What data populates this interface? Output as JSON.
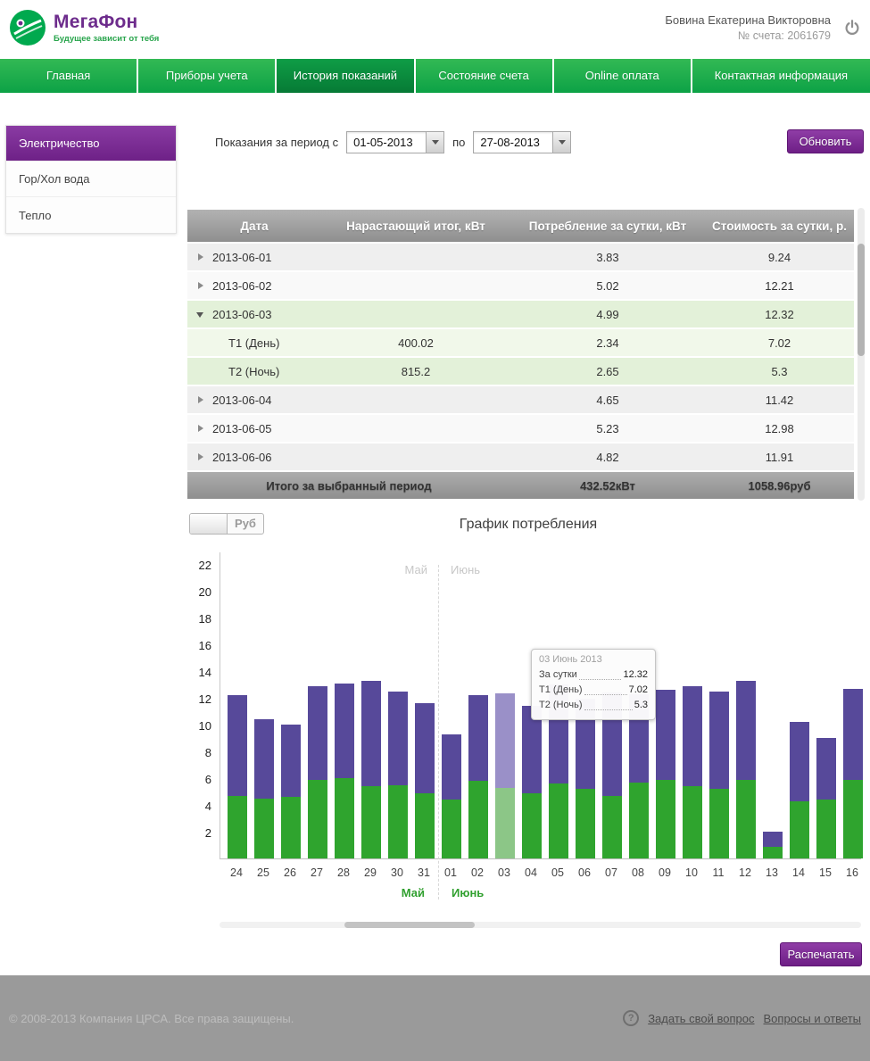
{
  "header": {
    "brand": "МегаФон",
    "tagline": "Будущее зависит от тебя",
    "user_name": "Бовина Екатерина Викторовна",
    "account": "№ счета: 2061679"
  },
  "nav": {
    "items": [
      {
        "label": "Главная",
        "active": false
      },
      {
        "label": "Приборы учета",
        "active": false
      },
      {
        "label": "История показаний",
        "active": true
      },
      {
        "label": "Состояние счета",
        "active": false
      },
      {
        "label": "Online оплата",
        "active": false
      },
      {
        "label": "Контактная информация",
        "active": false
      }
    ]
  },
  "sidebar": {
    "items": [
      {
        "label": "Электричество",
        "active": true
      },
      {
        "label": "Гор/Хол вода",
        "active": false
      },
      {
        "label": "Тепло",
        "active": false
      }
    ]
  },
  "filter": {
    "label_prefix": "Показания за период с",
    "date_from": "01-05-2013",
    "label_between": "по",
    "date_to": "27-08-2013",
    "refresh_label": "Обновить"
  },
  "table": {
    "columns": [
      "Дата",
      "Нарастающий итог, кВт",
      "Потребление за сутки, кВт",
      "Стоимость за сутки, р."
    ],
    "rows": [
      {
        "date": "2013-06-01",
        "total": "",
        "consumption": "3.83",
        "cost": "9.24"
      },
      {
        "date": "2013-06-02",
        "total": "",
        "consumption": "5.02",
        "cost": "12.21"
      },
      {
        "date": "2013-06-03",
        "total": "",
        "consumption": "4.99",
        "cost": "12.32"
      },
      {
        "date": "Т1 (День)",
        "total": "400.02",
        "consumption": "2.34",
        "cost": "7.02"
      },
      {
        "date": "Т2 (Ночь)",
        "total": "815.2",
        "consumption": "2.65",
        "cost": "5.3"
      },
      {
        "date": "2013-06-04",
        "total": "",
        "consumption": "4.65",
        "cost": "11.42"
      },
      {
        "date": "2013-06-05",
        "total": "",
        "consumption": "5.23",
        "cost": "12.98"
      },
      {
        "date": "2013-06-06",
        "total": "",
        "consumption": "4.82",
        "cost": "11.91"
      }
    ],
    "footer": {
      "label": "Итого за выбранный период",
      "consumption": "432.52кВт",
      "cost": "1058.96руб"
    }
  },
  "chart": {
    "unit_label": "Руб",
    "title": "График потребления",
    "months": [
      "Май",
      "Июнь"
    ],
    "print_label": "Распечатать"
  },
  "tooltip": {
    "title": "03 Июнь 2013",
    "rows": [
      {
        "label": "За сутки",
        "value": "12.32"
      },
      {
        "label": "Т1 (День)",
        "value": "7.02"
      },
      {
        "label": "Т2 (Ночь)",
        "value": "5.3"
      }
    ]
  },
  "chart_data": {
    "type": "bar",
    "stacked": true,
    "title": "График потребления",
    "unit": "Руб",
    "ylim": [
      0,
      22
    ],
    "yticks": [
      2,
      4,
      6,
      8,
      10,
      12,
      14,
      16,
      18,
      20,
      22
    ],
    "categories": [
      "24",
      "25",
      "26",
      "27",
      "28",
      "29",
      "30",
      "31",
      "01",
      "02",
      "03",
      "04",
      "05",
      "06",
      "07",
      "08",
      "09",
      "10",
      "11",
      "12",
      "13",
      "14",
      "15",
      "16"
    ],
    "month_groups": [
      {
        "label": "Май",
        "from_index": 0,
        "to_index": 7
      },
      {
        "label": "Июнь",
        "from_index": 8,
        "to_index": 23
      }
    ],
    "series": [
      {
        "name": "Т2 (Ночь)",
        "color": "#2fa42e",
        "values": [
          4.7,
          4.5,
          4.6,
          5.9,
          6.0,
          5.4,
          5.5,
          4.9,
          4.4,
          5.8,
          5.3,
          4.9,
          5.6,
          5.2,
          4.7,
          5.7,
          5.9,
          5.4,
          5.2,
          5.9,
          0.9,
          4.3,
          4.4,
          5.9
        ]
      },
      {
        "name": "Т1 (День)",
        "color": "#57499a",
        "values": [
          7.5,
          5.9,
          5.4,
          7.0,
          7.1,
          7.9,
          7.0,
          6.7,
          4.84,
          6.41,
          7.02,
          6.52,
          7.38,
          6.71,
          7.7,
          6.6,
          6.7,
          7.5,
          7.3,
          7.4,
          1.1,
          5.9,
          4.6,
          6.8
        ]
      }
    ],
    "totals": [
      12.2,
      10.4,
      10.0,
      12.9,
      13.1,
      13.3,
      12.5,
      11.6,
      9.24,
      12.21,
      12.32,
      11.42,
      12.98,
      11.91,
      12.4,
      12.3,
      12.6,
      12.9,
      12.5,
      13.3,
      2.0,
      10.2,
      9.0,
      12.7
    ],
    "highlight_category": "03",
    "highlight_index": 10,
    "legend_position": "none",
    "grid": false
  },
  "page_footer": {
    "copyright": "© 2008-2013 Компания ЦРСА. Все права защищены.",
    "links": [
      {
        "label": "Задать свой вопрос"
      },
      {
        "label": "Вопросы и ответы"
      }
    ]
  }
}
